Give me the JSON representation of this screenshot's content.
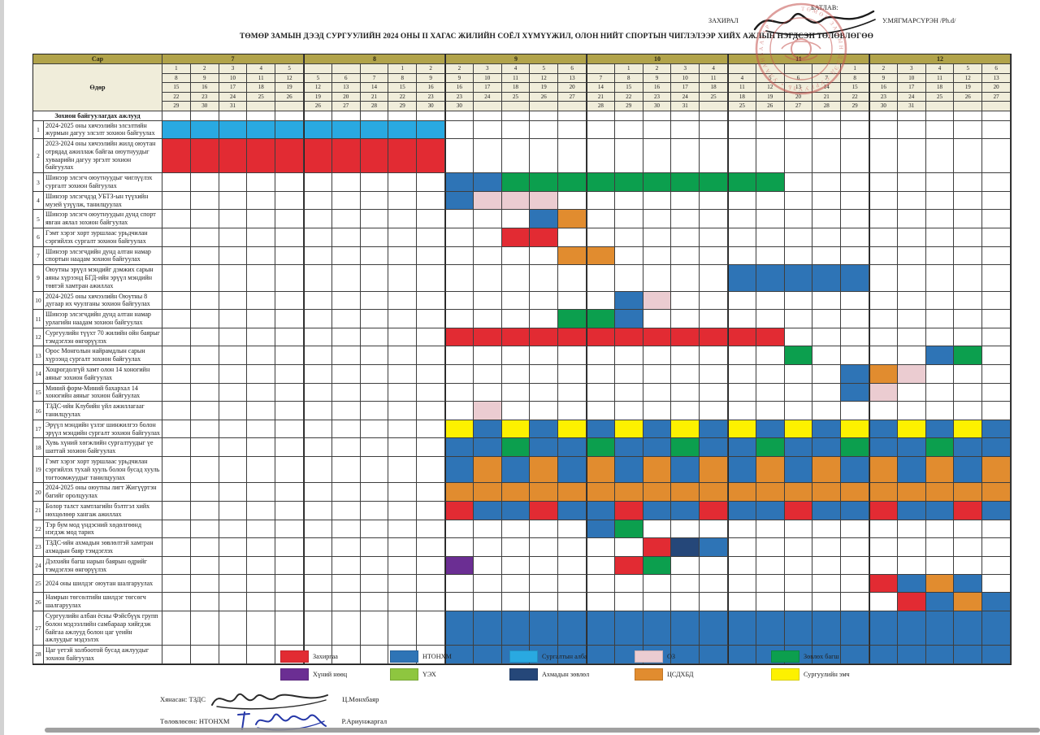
{
  "title": "ТӨМӨР ЗАМЫН ДЭЭД СУРГУУЛИЙН 2024 ОНЫ II ХАГАС ЖИЛИЙН СОЁЛ ХҮМҮҮЖИЛ, ОЛОН НИЙТ СПОРТЫН ЧИГЛЭЛЭЭР ХИЙХ АЖЛЫН НЭГДСЭН ТӨЛӨВЛӨГӨӨ",
  "approval": {
    "approved_label": "БАТЛАВ:",
    "role_label": "ЗАХИРАЛ",
    "director_name": "У.МЯГМАРСҮРЭН /Ph.d/"
  },
  "palette": {
    "red": "#e22b33",
    "blue": "#2e74b6",
    "lblue": "#29a9e1",
    "pink": "#ebccd1",
    "green": "#0c9f4e",
    "purple": "#6b2e93",
    "ygreen": "#8ec63f",
    "navy": "#254779",
    "orange": "#e18c2f",
    "yellow": "#fdf100",
    "band": "#b1a34a",
    "cream": "#f0edda"
  },
  "table": {
    "month_label": "Сар",
    "day_label": "Өдөр",
    "section_header": "Зохион байгуулагдах ажлууд",
    "months": [
      {
        "label": "7",
        "days": [
          [
            "1",
            "8",
            "15",
            "22",
            "29"
          ],
          [
            "2",
            "9",
            "16",
            "23",
            "30"
          ],
          [
            "3",
            "10",
            "17",
            "24",
            "31"
          ],
          [
            "4",
            "11",
            "18",
            "25",
            ""
          ],
          [
            "5",
            "12",
            "19",
            "26",
            ""
          ]
        ]
      },
      {
        "label": "8",
        "days": [
          [
            "",
            "5",
            "12",
            "19",
            "26"
          ],
          [
            "",
            "6",
            "13",
            "20",
            "27"
          ],
          [
            "",
            "7",
            "14",
            "21",
            "28"
          ],
          [
            "1",
            "8",
            "15",
            "22",
            "29"
          ],
          [
            "2",
            "9",
            "16",
            "23",
            "30"
          ]
        ]
      },
      {
        "label": "9",
        "days": [
          [
            "2",
            "9",
            "16",
            "23",
            "30"
          ],
          [
            "3",
            "10",
            "17",
            "24",
            ""
          ],
          [
            "4",
            "11",
            "18",
            "25",
            ""
          ],
          [
            "5",
            "12",
            "19",
            "26",
            ""
          ],
          [
            "6",
            "13",
            "20",
            "27",
            ""
          ]
        ]
      },
      {
        "label": "10",
        "days": [
          [
            "",
            "7",
            "14",
            "21",
            "28"
          ],
          [
            "1",
            "8",
            "15",
            "22",
            "29"
          ],
          [
            "2",
            "9",
            "16",
            "23",
            "30"
          ],
          [
            "3",
            "10",
            "17",
            "24",
            "31"
          ],
          [
            "4",
            "11",
            "18",
            "25",
            ""
          ]
        ]
      },
      {
        "label": "11",
        "days": [
          [
            "",
            "4",
            "11",
            "18",
            "25"
          ],
          [
            "",
            "5",
            "12",
            "19",
            "26"
          ],
          [
            "",
            "6",
            "13",
            "20",
            "27"
          ],
          [
            "",
            "7",
            "14",
            "21",
            "28"
          ],
          [
            "1",
            "8",
            "15",
            "22",
            "29"
          ]
        ]
      },
      {
        "label": "12",
        "days": [
          [
            "2",
            "9",
            "16",
            "23",
            "30"
          ],
          [
            "3",
            "10",
            "17",
            "24",
            "31"
          ],
          [
            "4",
            "11",
            "18",
            "25",
            ""
          ],
          [
            "5",
            "12",
            "19",
            "26",
            ""
          ],
          [
            "6",
            "13",
            "20",
            "27",
            ""
          ]
        ]
      }
    ],
    "rows": [
      {
        "num": "1",
        "task": "2024-2025 оны хичээлийн элсэлтийн журмын дагуу элсэлт зохион байгуулах",
        "bars": [
          [
            1,
            10,
            "lblue"
          ]
        ]
      },
      {
        "num": "2",
        "task": "2023-2024 оны хичээлийн жилд оюутан отрядад ажиллаж байгаа оюутнуудыг хуваарийн дагуу эргэлт зохион байгуулах",
        "bars": [
          [
            1,
            10,
            "red"
          ]
        ]
      },
      {
        "num": "3",
        "task": "Шинээр элсэгч оюутнуудыг чиглүүлэх сургалт зохион байгуулах",
        "bars": [
          [
            11,
            12,
            "blue"
          ],
          [
            13,
            22,
            "green"
          ]
        ]
      },
      {
        "num": "4",
        "task": "Шинээр элсэгчдэд УБТЗ-ын түүхийн музей үзүүлж, танилцуулах",
        "bars": [
          [
            11,
            11,
            "blue"
          ],
          [
            12,
            14,
            "pink"
          ]
        ]
      },
      {
        "num": "5",
        "task": "Шинээр элсэгч оюутнуудын дунд спорт явган аялал зохион байгуулах",
        "bars": [
          [
            14,
            14,
            "blue"
          ],
          [
            15,
            15,
            "orange"
          ]
        ]
      },
      {
        "num": "6",
        "task": "Гэмт хэрэг хорт зуршлаас урьдчилан сэргийлэх сургалт зохион байгуулах",
        "bars": [
          [
            13,
            14,
            "red"
          ]
        ]
      },
      {
        "num": "7",
        "task": "Шинээр элсэгчдийн дунд алтан намар спортын наадам зохион байгуулах",
        "bars": [
          [
            15,
            16,
            "orange"
          ]
        ]
      },
      {
        "num": "9",
        "task": "Оюутны эрүүл мэндийг дэмжих сарын аяны хүрээнд БГД-ийн эрүүл мэндийн төвтэй хамтран ажиллах",
        "bars": [
          [
            21,
            25,
            "blue"
          ]
        ]
      },
      {
        "num": "10",
        "task": "2024-2025 оны хичээлийн Оюутны 8 дугаар их чуулганы зохион байгуулах",
        "bars": [
          [
            17,
            17,
            "blue"
          ],
          [
            18,
            18,
            "pink"
          ]
        ]
      },
      {
        "num": "11",
        "task": "Шинээр элсэгчдийн дунд алтан намар урлагийн наадам зохион байгуулах",
        "bars": [
          [
            15,
            16,
            "green"
          ],
          [
            17,
            17,
            "blue"
          ]
        ]
      },
      {
        "num": "12",
        "task": "Сургуулийн түүхт 70 жилийн ойн баярыг тэмдэглэн өнгөрүүлэх",
        "bars": [
          [
            11,
            22,
            "red"
          ]
        ]
      },
      {
        "num": "13",
        "task": "Орос Монголын найрамдлын сарын хүрээнд сургалт зохион байгуулах",
        "bars": [
          [
            23,
            23,
            "green"
          ],
          [
            28,
            28,
            "blue"
          ],
          [
            29,
            29,
            "green"
          ]
        ]
      },
      {
        "num": "14",
        "task": "Хоцрогдолгүй хамт олон 14 хоногийн аяныг зохион байгуулах",
        "bars": [
          [
            25,
            25,
            "blue"
          ],
          [
            26,
            26,
            "orange"
          ],
          [
            27,
            27,
            "pink"
          ]
        ]
      },
      {
        "num": "15",
        "task": "Миний форм-Миний бахархал  14 хоногийн аяныг зохион байгуулах",
        "bars": [
          [
            25,
            25,
            "blue"
          ],
          [
            26,
            26,
            "pink"
          ]
        ]
      },
      {
        "num": "16",
        "task": "ТЗДС-ийн Клубийн үйл ажиллагааг танилцуулах",
        "bars": [
          [
            12,
            12,
            "pink"
          ]
        ]
      },
      {
        "num": "17",
        "task": "Эрүүл мэндийн үзлэг шинжилгээ болон эрүүл мэндийн сургалт зохион байгуулах",
        "bars": [
          [
            11,
            11,
            "yellow"
          ],
          [
            12,
            12,
            "blue"
          ],
          [
            13,
            13,
            "yellow"
          ],
          [
            14,
            14,
            "blue"
          ],
          [
            15,
            15,
            "yellow"
          ],
          [
            16,
            16,
            "blue"
          ],
          [
            17,
            17,
            "yellow"
          ],
          [
            18,
            18,
            "blue"
          ],
          [
            19,
            19,
            "yellow"
          ],
          [
            20,
            20,
            "blue"
          ],
          [
            21,
            21,
            "yellow"
          ],
          [
            22,
            22,
            "blue"
          ],
          [
            23,
            23,
            "yellow"
          ],
          [
            24,
            24,
            "blue"
          ],
          [
            25,
            25,
            "yellow"
          ],
          [
            26,
            26,
            "blue"
          ],
          [
            27,
            27,
            "yellow"
          ],
          [
            28,
            28,
            "blue"
          ],
          [
            29,
            29,
            "yellow"
          ],
          [
            30,
            30,
            "blue"
          ]
        ]
      },
      {
        "num": "18",
        "task": "Хувь хүний хөгжлийн сургалтуудыг үе шаттай зохион байгуулах",
        "bars": [
          [
            11,
            12,
            "blue"
          ],
          [
            13,
            13,
            "green"
          ],
          [
            14,
            15,
            "blue"
          ],
          [
            16,
            16,
            "green"
          ],
          [
            17,
            18,
            "blue"
          ],
          [
            19,
            19,
            "green"
          ],
          [
            20,
            21,
            "blue"
          ],
          [
            22,
            22,
            "green"
          ],
          [
            23,
            24,
            "blue"
          ],
          [
            25,
            25,
            "green"
          ],
          [
            26,
            27,
            "blue"
          ],
          [
            28,
            28,
            "green"
          ],
          [
            29,
            30,
            "blue"
          ]
        ]
      },
      {
        "num": "19",
        "task": "Гэмт хэрэг хорт зуршлаас урьдчилан сэргийлэх тухай хууль болон бусад хууль тогтоомжуудыг танилцуулах",
        "bars": [
          [
            11,
            11,
            "blue"
          ],
          [
            12,
            12,
            "orange"
          ],
          [
            13,
            13,
            "blue"
          ],
          [
            14,
            14,
            "orange"
          ],
          [
            15,
            15,
            "blue"
          ],
          [
            16,
            16,
            "orange"
          ],
          [
            17,
            17,
            "blue"
          ],
          [
            18,
            18,
            "orange"
          ],
          [
            19,
            19,
            "blue"
          ],
          [
            20,
            20,
            "orange"
          ],
          [
            21,
            21,
            "blue"
          ],
          [
            22,
            22,
            "orange"
          ],
          [
            23,
            23,
            "blue"
          ],
          [
            24,
            24,
            "orange"
          ],
          [
            25,
            25,
            "blue"
          ],
          [
            26,
            26,
            "orange"
          ],
          [
            27,
            27,
            "blue"
          ],
          [
            28,
            28,
            "orange"
          ],
          [
            29,
            29,
            "blue"
          ],
          [
            30,
            30,
            "orange"
          ]
        ]
      },
      {
        "num": "20",
        "task": "2024-2025 оны оюутны лигт Жигүүртэн багийг оролцуулах",
        "bars": [
          [
            11,
            30,
            "orange"
          ]
        ]
      },
      {
        "num": "21",
        "task": "Болор талст хамтлагийн бэлтгэл хийх нөхцөлөөр хангаж ажиллах",
        "bars": [
          [
            11,
            11,
            "red"
          ],
          [
            12,
            13,
            "blue"
          ],
          [
            14,
            14,
            "red"
          ],
          [
            15,
            16,
            "blue"
          ],
          [
            17,
            17,
            "red"
          ],
          [
            18,
            19,
            "blue"
          ],
          [
            20,
            20,
            "red"
          ],
          [
            21,
            22,
            "blue"
          ],
          [
            23,
            23,
            "red"
          ],
          [
            24,
            25,
            "blue"
          ],
          [
            26,
            26,
            "red"
          ],
          [
            27,
            28,
            "blue"
          ],
          [
            29,
            29,
            "red"
          ],
          [
            30,
            30,
            "blue"
          ]
        ]
      },
      {
        "num": "22",
        "task": "Тэр бум мод үндэсний хөдөлгөөнд нэгдэж мод тарих",
        "bars": [
          [
            16,
            16,
            "blue"
          ],
          [
            17,
            17,
            "green"
          ]
        ]
      },
      {
        "num": "23",
        "task": "ТЗДС-ийн ахмадын зөвлөлтэй хамтран ахмадын баяр тэмдэглэх",
        "bars": [
          [
            18,
            18,
            "red"
          ],
          [
            19,
            19,
            "navy"
          ],
          [
            20,
            20,
            "blue"
          ]
        ]
      },
      {
        "num": "24",
        "task": "Дэлхийн багш нарын баярын өдрийг тэмдэглэн өнгөрүүлэх",
        "bars": [
          [
            11,
            11,
            "purple"
          ],
          [
            17,
            17,
            "red"
          ],
          [
            18,
            18,
            "green"
          ]
        ]
      },
      {
        "num": "25",
        "task": "2024 оны шилдэг оюутан шалгаруулах",
        "bars": [
          [
            26,
            26,
            "red"
          ],
          [
            27,
            27,
            "blue"
          ],
          [
            28,
            28,
            "orange"
          ],
          [
            29,
            29,
            "blue"
          ]
        ]
      },
      {
        "num": "26",
        "task": "Намрын төгсөлтийн шилдэг төгсөгч шалгаруулах",
        "bars": [
          [
            27,
            27,
            "red"
          ],
          [
            28,
            28,
            "blue"
          ],
          [
            29,
            29,
            "orange"
          ],
          [
            30,
            30,
            "blue"
          ]
        ]
      },
      {
        "num": "27",
        "task": "Сургуулийн албан ёсны Фэйсбүүк групп болон мэдээллийн самбараар хийгдэж байгаа ажлууд болон цаг үеийн ажлуудыг мэдээлэх",
        "bars": [
          [
            11,
            30,
            "blue"
          ]
        ]
      },
      {
        "num": "28",
        "task": "Цаг үетэй холбоотой бусад ажлуудыг зохион байгуулах",
        "bars": [
          [
            11,
            30,
            "blue"
          ]
        ]
      }
    ]
  },
  "legend": {
    "items": [
      {
        "label": "Захиргаа",
        "color": "red"
      },
      {
        "label": "НТОНХМ",
        "color": "blue"
      },
      {
        "label": "Сургалтын алба",
        "color": "lblue"
      },
      {
        "label": "ОЗ",
        "color": "pink"
      },
      {
        "label": "Зөвлөх багш",
        "color": "green"
      },
      {
        "label": "Хүний нөөц",
        "color": "purple"
      },
      {
        "label": "ҮЭХ",
        "color": "ygreen"
      },
      {
        "label": "Ахмадын зөвлөл",
        "color": "navy"
      },
      {
        "label": "ЦСДХБД",
        "color": "tsdhbd_orange"
      },
      {
        "label": "Сургуулийн эмч",
        "color": "yellow"
      }
    ]
  },
  "footer": {
    "reviewed_prefix": "Хянасан: ТЗДС",
    "reviewed_name": "Ц.Мөнхбаяр",
    "planned_prefix": "Төлөвлөсөн: НТОНХМ",
    "planned_name": "Р.Ариунжаргал"
  }
}
